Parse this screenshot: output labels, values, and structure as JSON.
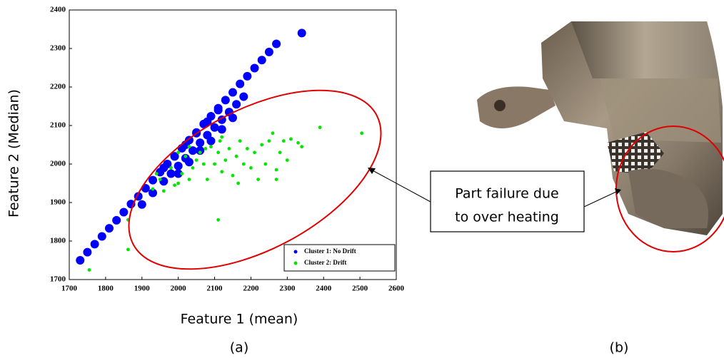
{
  "chart_data": {
    "type": "scatter",
    "xlabel": "Feature 1 (mean)",
    "ylabel": "Feature 2 (Median)",
    "xlim": [
      1700,
      2600
    ],
    "ylim": [
      1700,
      2400
    ],
    "xticks": [
      1700,
      1800,
      1900,
      2000,
      2100,
      2200,
      2300,
      2400,
      2500,
      2600
    ],
    "yticks": [
      1700,
      1800,
      1900,
      2000,
      2100,
      2200,
      2300,
      2400
    ],
    "legend": "lower right",
    "series": [
      {
        "name": "Cluster 1: No Drift",
        "color": "#0000ff",
        "x": [
          1730,
          1750,
          1770,
          1790,
          1810,
          1830,
          1850,
          1870,
          1890,
          1910,
          1930,
          1950,
          1970,
          1990,
          2010,
          2030,
          2050,
          2070,
          2090,
          2110,
          2130,
          2150,
          2170,
          2190,
          2210,
          2230,
          2250,
          2270,
          2340,
          1900,
          1930,
          1960,
          1980,
          2000,
          2020,
          2040,
          2060,
          2080,
          2100,
          2120,
          2140,
          2160,
          2180,
          2000,
          2030,
          2060,
          2090,
          2120,
          2150,
          1960,
          1990,
          2020,
          2050,
          2080,
          2110
        ],
        "values": [
          1750,
          1771,
          1792,
          1812,
          1833,
          1854,
          1875,
          1896,
          1916,
          1937,
          1958,
          1979,
          2000,
          2020,
          2041,
          2062,
          2082,
          2104,
          2124,
          2145,
          2166,
          2186,
          2208,
          2228,
          2249,
          2270,
          2291,
          2312,
          2340,
          1895,
          1925,
          1955,
          1975,
          1995,
          2015,
          2035,
          2055,
          2075,
          2095,
          2115,
          2135,
          2155,
          2175,
          1975,
          2005,
          2035,
          2060,
          2090,
          2120,
          1990,
          2020,
          2050,
          2080,
          2110,
          2140
        ]
      },
      {
        "name": "Cluster 2: Drift",
        "color": "#00e600",
        "x": [
          1755,
          1862,
          1862,
          2110,
          2390,
          2505,
          1930,
          1950,
          1960,
          1980,
          1990,
          2000,
          2010,
          2020,
          2030,
          2040,
          2050,
          2060,
          2070,
          2075,
          2080,
          2090,
          2100,
          2110,
          2115,
          2120,
          2130,
          2140,
          2150,
          2160,
          2170,
          2180,
          2190,
          2200,
          2210,
          2220,
          2230,
          2240,
          2250,
          2260,
          2270,
          2280,
          2290,
          2300,
          2310,
          2330,
          2340,
          2120,
          2030,
          2000,
          1940,
          2165,
          2270
        ],
        "values": [
          1725,
          1778,
          1855,
          1855,
          2095,
          2080,
          1935,
          1960,
          1930,
          1990,
          1945,
          1950,
          1975,
          2020,
          1960,
          1990,
          2010,
          2030,
          2000,
          2040,
          1960,
          2045,
          2000,
          2030,
          2060,
          1980,
          2010,
          2040,
          1970,
          2020,
          2060,
          2000,
          2040,
          1990,
          2030,
          1960,
          2050,
          2000,
          2060,
          2080,
          1985,
          2030,
          2060,
          2010,
          2065,
          2055,
          2045,
          2070,
          2045,
          2030,
          1975,
          1950,
          1960
        ]
      }
    ]
  },
  "annotation": [
    "Part failure due",
    "to over heating"
  ],
  "panel_labels": [
    "(a)",
    "(b)"
  ]
}
